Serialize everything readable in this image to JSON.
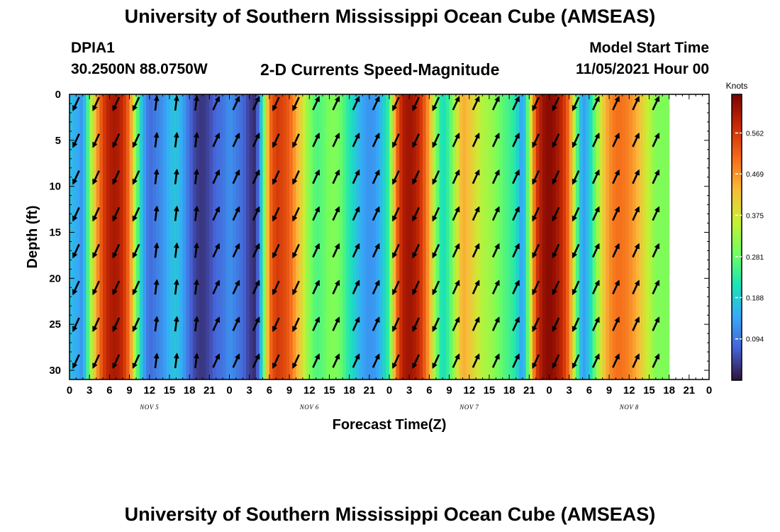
{
  "page": {
    "title_top": "University of Southern Mississippi Ocean Cube (AMSEAS)",
    "title_bottom": "University of Southern Mississippi Ocean Cube (AMSEAS)",
    "station_id": "DPIA1",
    "station_coords": "30.2500N  88.0750W",
    "plot_title": "2-D Currents Speed-Magnitude",
    "model_start_label": "Model Start Time",
    "model_start_value": "11/05/2021 Hour 00"
  },
  "chart_data": {
    "type": "heatmap",
    "title": "2-D Currents Speed-Magnitude",
    "xlabel": "Forecast Time(Z)",
    "ylabel": "Depth (ft)",
    "x_range_hours": [
      0,
      96
    ],
    "y_range_ft": [
      0,
      31
    ],
    "x_tick_labels": [
      "0",
      "3",
      "6",
      "9",
      "12",
      "15",
      "18",
      "21",
      "0",
      "3",
      "6",
      "9",
      "12",
      "15",
      "18",
      "21",
      "0",
      "3",
      "6",
      "9",
      "12",
      "15",
      "18",
      "21",
      "0",
      "3",
      "6",
      "9",
      "12",
      "15",
      "18",
      "21",
      "0"
    ],
    "x_tick_step_hours": 3,
    "day_labels": [
      "NOV 5",
      "NOV 6",
      "NOV 7",
      "NOV 8"
    ],
    "y_tick_labels": [
      "0",
      "5",
      "10",
      "15",
      "20",
      "25",
      "30"
    ],
    "y_tick_values": [
      0,
      5,
      10,
      15,
      20,
      25,
      30
    ],
    "colorbar": {
      "unit": "Knots",
      "tick_labels": [
        "0.562",
        "0.469",
        "0.375",
        "0.281",
        "0.188",
        "0.094"
      ],
      "tick_values": [
        0.562,
        0.469,
        0.375,
        0.281,
        0.188,
        0.094
      ],
      "range": [
        0,
        0.65
      ],
      "colors": [
        "#30123b",
        "#4662d7",
        "#36aaf9",
        "#1ae4b6",
        "#72fe5e",
        "#c7ef34",
        "#faba39",
        "#f66b19",
        "#ca2a04",
        "#7a0403"
      ]
    },
    "speed_profile_knots": [
      [
        0,
        0.17
      ],
      [
        1,
        0.15
      ],
      [
        2,
        0.12
      ],
      [
        3,
        0.3
      ],
      [
        4,
        0.45
      ],
      [
        5,
        0.55
      ],
      [
        6,
        0.6
      ],
      [
        7,
        0.61
      ],
      [
        8,
        0.58
      ],
      [
        9,
        0.5
      ],
      [
        10,
        0.3
      ],
      [
        11,
        0.15
      ],
      [
        12,
        0.08
      ],
      [
        13,
        0.1
      ],
      [
        14,
        0.12
      ],
      [
        15,
        0.16
      ],
      [
        16,
        0.18
      ],
      [
        17,
        0.14
      ],
      [
        18,
        0.08
      ],
      [
        19,
        0.04
      ],
      [
        20,
        0.03
      ],
      [
        21,
        0.05
      ],
      [
        22,
        0.08
      ],
      [
        23,
        0.09
      ],
      [
        24,
        0.12
      ],
      [
        25,
        0.1
      ],
      [
        26,
        0.08
      ],
      [
        27,
        0.04
      ],
      [
        28,
        0.02
      ],
      [
        29,
        0.22
      ],
      [
        30,
        0.5
      ],
      [
        31,
        0.56
      ],
      [
        32,
        0.55
      ],
      [
        33,
        0.52
      ],
      [
        34,
        0.45
      ],
      [
        35,
        0.38
      ],
      [
        36,
        0.3
      ],
      [
        37,
        0.26
      ],
      [
        38,
        0.27
      ],
      [
        39,
        0.3
      ],
      [
        40,
        0.3
      ],
      [
        41,
        0.27
      ],
      [
        42,
        0.22
      ],
      [
        43,
        0.18
      ],
      [
        44,
        0.14
      ],
      [
        45,
        0.12
      ],
      [
        46,
        0.13
      ],
      [
        47,
        0.18
      ],
      [
        48,
        0.25
      ],
      [
        49,
        0.5
      ],
      [
        50,
        0.6
      ],
      [
        51,
        0.62
      ],
      [
        52,
        0.6
      ],
      [
        53,
        0.55
      ],
      [
        54,
        0.45
      ],
      [
        55,
        0.3
      ],
      [
        56,
        0.2
      ],
      [
        57,
        0.25
      ],
      [
        58,
        0.35
      ],
      [
        59,
        0.45
      ],
      [
        60,
        0.42
      ],
      [
        61,
        0.38
      ],
      [
        62,
        0.34
      ],
      [
        63,
        0.33
      ],
      [
        64,
        0.3
      ],
      [
        65,
        0.27
      ],
      [
        66,
        0.25
      ],
      [
        67,
        0.22
      ],
      [
        68,
        0.12
      ],
      [
        69,
        0.32
      ],
      [
        70,
        0.55
      ],
      [
        71,
        0.62
      ],
      [
        72,
        0.64
      ],
      [
        73,
        0.62
      ],
      [
        74,
        0.58
      ],
      [
        75,
        0.5
      ],
      [
        76,
        0.3
      ],
      [
        77,
        0.12
      ],
      [
        78,
        0.18
      ],
      [
        79,
        0.3
      ],
      [
        80,
        0.4
      ],
      [
        81,
        0.47
      ],
      [
        82,
        0.5
      ],
      [
        83,
        0.5
      ],
      [
        84,
        0.48
      ],
      [
        85,
        0.45
      ],
      [
        86,
        0.4
      ],
      [
        87,
        0.35
      ],
      [
        88,
        0.3
      ],
      [
        89,
        0.3
      ],
      [
        90,
        0.3
      ]
    ],
    "vector_rows_ft": [
      1,
      5,
      9,
      13,
      17,
      21,
      25,
      29
    ],
    "vector_direction_knots": [
      {
        "hour": 1,
        "dir": "sw"
      },
      {
        "hour": 4,
        "dir": "sw"
      },
      {
        "hour": 7,
        "dir": "sw"
      },
      {
        "hour": 10,
        "dir": "sw"
      },
      {
        "hour": 13,
        "dir": "n"
      },
      {
        "hour": 16,
        "dir": "n"
      },
      {
        "hour": 19,
        "dir": "n"
      },
      {
        "hour": 22,
        "dir": "ne"
      },
      {
        "hour": 25,
        "dir": "ne"
      },
      {
        "hour": 28,
        "dir": "ne"
      },
      {
        "hour": 31,
        "dir": "sw"
      },
      {
        "hour": 34,
        "dir": "sw"
      },
      {
        "hour": 37,
        "dir": "ne"
      },
      {
        "hour": 40,
        "dir": "ne"
      },
      {
        "hour": 43,
        "dir": "ne"
      },
      {
        "hour": 46,
        "dir": "ne"
      },
      {
        "hour": 49,
        "dir": "sw"
      },
      {
        "hour": 52,
        "dir": "sw"
      },
      {
        "hour": 55,
        "dir": "sw"
      },
      {
        "hour": 58,
        "dir": "ne"
      },
      {
        "hour": 61,
        "dir": "ne"
      },
      {
        "hour": 64,
        "dir": "ne"
      },
      {
        "hour": 67,
        "dir": "ne"
      },
      {
        "hour": 70,
        "dir": "sw"
      },
      {
        "hour": 73,
        "dir": "sw"
      },
      {
        "hour": 76,
        "dir": "sw"
      },
      {
        "hour": 79,
        "dir": "ne"
      },
      {
        "hour": 82,
        "dir": "ne"
      },
      {
        "hour": 85,
        "dir": "ne"
      },
      {
        "hour": 88,
        "dir": "ne"
      }
    ]
  }
}
